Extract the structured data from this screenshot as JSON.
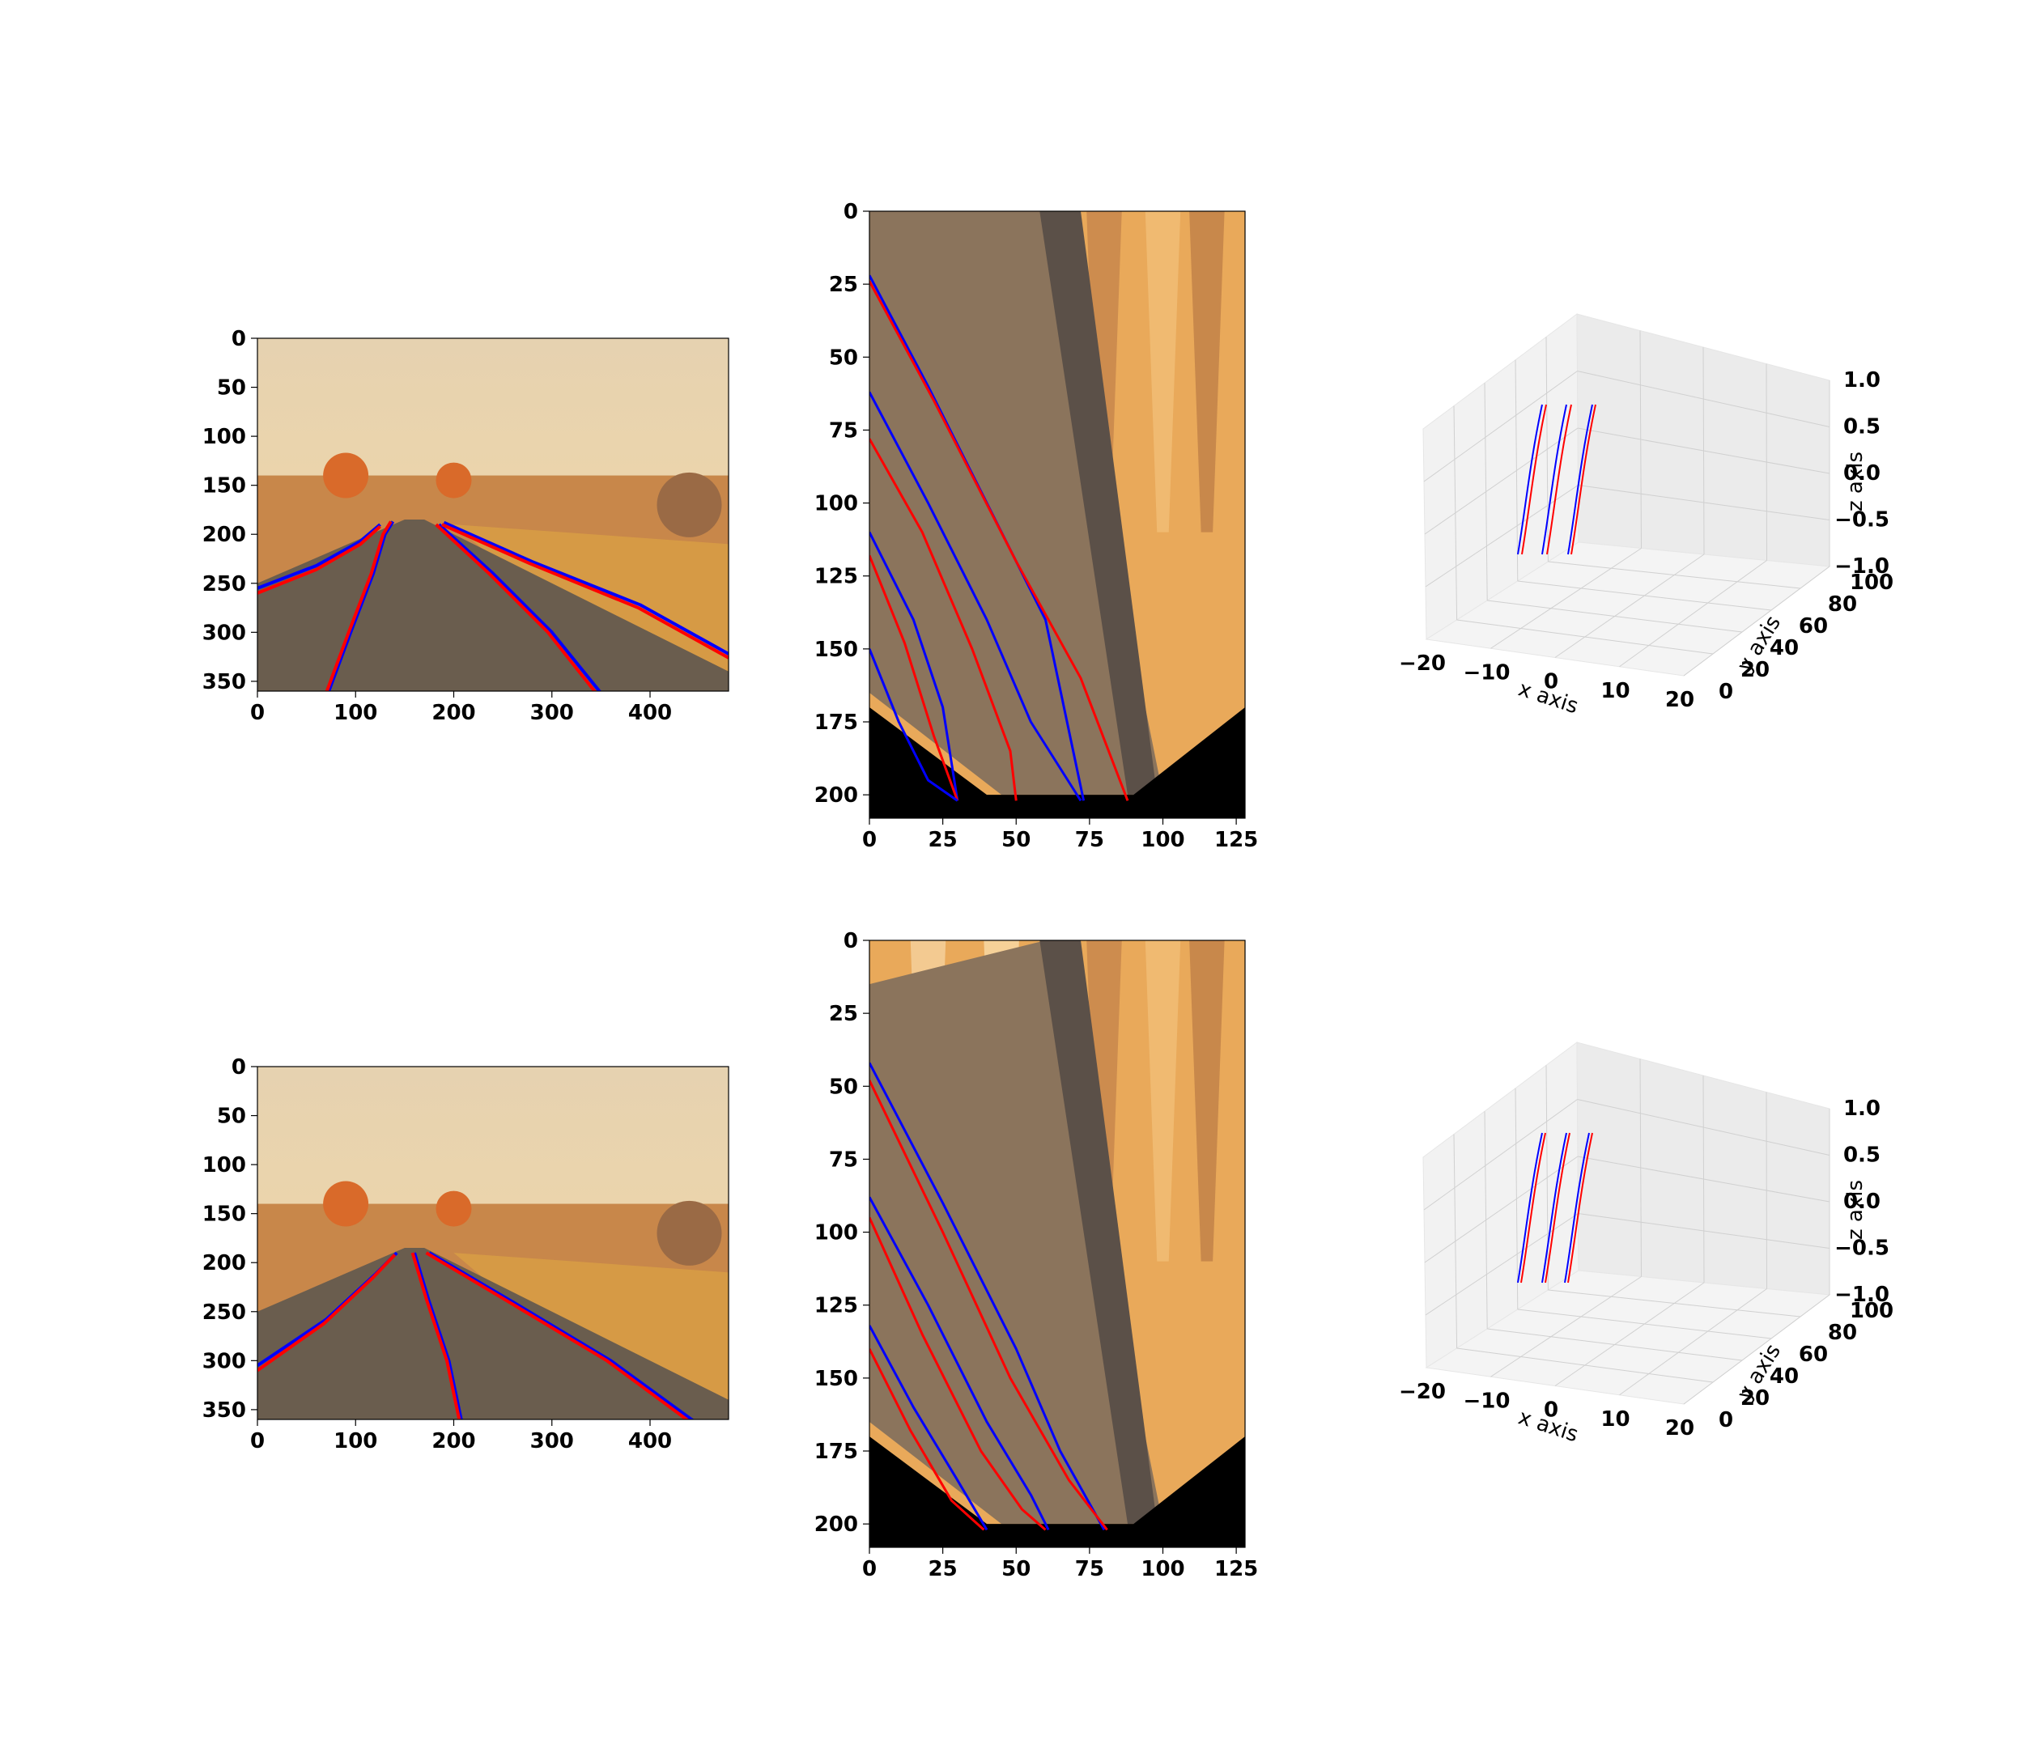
{
  "colors": {
    "pred": "#ff0000",
    "gt": "#0000ff",
    "pane": "#f2f2f2",
    "grid": "#d0d0d0",
    "sky": "#e9d1a9",
    "road": "#6a5d4e",
    "grass": "#d69a45"
  },
  "chart_data": [
    {
      "type": "image_with_lane_overlay",
      "name": "row1-camera",
      "xlim": [
        0,
        480
      ],
      "ylim": [
        360,
        0
      ],
      "xticks": [
        "0",
        "100",
        "200",
        "300",
        "400"
      ],
      "yticks": [
        "0",
        "50",
        "100",
        "150",
        "200",
        "250",
        "300",
        "350"
      ],
      "series": [
        {
          "color": "#0000ff",
          "values": [
            [
              0,
              255
            ],
            [
              60,
              232
            ],
            [
              105,
              207
            ],
            [
              125,
              190
            ]
          ]
        },
        {
          "color": "#ff0000",
          "values": [
            [
              0,
              260
            ],
            [
              60,
              236
            ],
            [
              105,
              210
            ],
            [
              125,
              192
            ]
          ]
        },
        {
          "color": "#0000ff",
          "values": [
            [
              72,
              362
            ],
            [
              95,
              300
            ],
            [
              118,
              240
            ],
            [
              130,
              200
            ],
            [
              138,
              187
            ]
          ]
        },
        {
          "color": "#ff0000",
          "values": [
            [
              70,
              362
            ],
            [
              93,
              300
            ],
            [
              116,
              240
            ],
            [
              128,
              200
            ],
            [
              136,
              187
            ]
          ]
        },
        {
          "color": "#0000ff",
          "values": [
            [
              350,
              362
            ],
            [
              300,
              300
            ],
            [
              240,
              240
            ],
            [
              185,
              190
            ]
          ]
        },
        {
          "color": "#ff0000",
          "values": [
            [
              345,
              362
            ],
            [
              296,
              300
            ],
            [
              236,
              240
            ],
            [
              182,
              190
            ]
          ]
        },
        {
          "color": "#0000ff",
          "values": [
            [
              480,
              322
            ],
            [
              390,
              272
            ],
            [
              280,
              228
            ],
            [
              190,
              188
            ]
          ]
        },
        {
          "color": "#ff0000",
          "values": [
            [
              480,
              326
            ],
            [
              388,
              275
            ],
            [
              278,
              230
            ],
            [
              188,
              190
            ]
          ]
        }
      ]
    },
    {
      "type": "image_with_lane_overlay",
      "name": "row1-birdseye",
      "xlim": [
        0,
        128
      ],
      "ylim": [
        208,
        0
      ],
      "xticks": [
        "0",
        "25",
        "50",
        "75",
        "100",
        "125"
      ],
      "yticks": [
        "0",
        "25",
        "50",
        "75",
        "100",
        "125",
        "150",
        "175",
        "200"
      ],
      "series": [
        {
          "color": "#0000ff",
          "values": [
            [
              0,
              22
            ],
            [
              20,
              60
            ],
            [
              45,
              110
            ],
            [
              60,
              140
            ],
            [
              73,
              202
            ]
          ]
        },
        {
          "color": "#ff0000",
          "values": [
            [
              0,
              24
            ],
            [
              22,
              65
            ],
            [
              50,
              120
            ],
            [
              72,
              160
            ],
            [
              88,
              202
            ]
          ]
        },
        {
          "color": "#0000ff",
          "values": [
            [
              0,
              62
            ],
            [
              20,
              100
            ],
            [
              40,
              140
            ],
            [
              55,
              175
            ],
            [
              72,
              202
            ]
          ]
        },
        {
          "color": "#ff0000",
          "values": [
            [
              0,
              78
            ],
            [
              18,
              110
            ],
            [
              35,
              150
            ],
            [
              48,
              185
            ],
            [
              50,
              202
            ]
          ]
        },
        {
          "color": "#0000ff",
          "values": [
            [
              0,
              110
            ],
            [
              15,
              140
            ],
            [
              25,
              170
            ],
            [
              30,
              202
            ]
          ]
        },
        {
          "color": "#ff0000",
          "values": [
            [
              0,
              118
            ],
            [
              12,
              148
            ],
            [
              22,
              180
            ],
            [
              30,
              202
            ]
          ]
        },
        {
          "color": "#0000ff",
          "values": [
            [
              0,
              150
            ],
            [
              10,
              175
            ],
            [
              20,
              195
            ],
            [
              30,
              202
            ]
          ]
        }
      ]
    },
    {
      "type": "3d_line",
      "name": "row1-3d",
      "xlabel": "x axis",
      "ylabel": "y axis",
      "zlabel": "z axis",
      "xticks": [
        "−20",
        "−10",
        "0",
        "10",
        "20"
      ],
      "yticks": [
        "0",
        "20",
        "40",
        "60",
        "80",
        "100"
      ],
      "zticks": [
        "−1.0",
        "−0.5",
        "0.0",
        "0.5",
        "1.0"
      ],
      "series": [
        {
          "color": "#0000ff",
          "offset": 0
        },
        {
          "color": "#ff0000",
          "offset": 5
        },
        {
          "color": "#0000ff",
          "offset": 30
        },
        {
          "color": "#ff0000",
          "offset": 36
        },
        {
          "color": "#0000ff",
          "offset": 62
        },
        {
          "color": "#ff0000",
          "offset": 66
        }
      ]
    },
    {
      "type": "image_with_lane_overlay",
      "name": "row2-camera",
      "xlim": [
        0,
        480
      ],
      "ylim": [
        360,
        0
      ],
      "xticks": [
        "0",
        "100",
        "200",
        "300",
        "400"
      ],
      "yticks": [
        "0",
        "50",
        "100",
        "150",
        "200",
        "250",
        "300",
        "350"
      ],
      "series": [
        {
          "color": "#0000ff",
          "values": [
            [
              0,
              305
            ],
            [
              70,
              258
            ],
            [
              120,
              212
            ],
            [
              142,
              190
            ]
          ]
        },
        {
          "color": "#ff0000",
          "values": [
            [
              0,
              310
            ],
            [
              68,
              262
            ],
            [
              118,
              215
            ],
            [
              140,
              192
            ]
          ]
        },
        {
          "color": "#0000ff",
          "values": [
            [
              208,
              362
            ],
            [
              195,
              300
            ],
            [
              175,
              240
            ],
            [
              160,
              190
            ]
          ]
        },
        {
          "color": "#ff0000",
          "values": [
            [
              206,
              362
            ],
            [
              193,
              300
            ],
            [
              173,
              240
            ],
            [
              158,
              190
            ]
          ]
        },
        {
          "color": "#0000ff",
          "values": [
            [
              445,
              362
            ],
            [
              360,
              300
            ],
            [
              260,
              240
            ],
            [
              175,
              190
            ]
          ]
        },
        {
          "color": "#ff0000",
          "values": [
            [
              440,
              362
            ],
            [
              356,
              300
            ],
            [
              256,
              240
            ],
            [
              172,
              190
            ]
          ]
        }
      ]
    },
    {
      "type": "image_with_lane_overlay",
      "name": "row2-birdseye",
      "xlim": [
        0,
        128
      ],
      "ylim": [
        208,
        0
      ],
      "xticks": [
        "0",
        "25",
        "50",
        "75",
        "100",
        "125"
      ],
      "yticks": [
        "0",
        "25",
        "50",
        "75",
        "100",
        "125",
        "150",
        "175",
        "200"
      ],
      "series": [
        {
          "color": "#0000ff",
          "values": [
            [
              0,
              42
            ],
            [
              25,
              90
            ],
            [
              50,
              140
            ],
            [
              65,
              175
            ],
            [
              80,
              202
            ]
          ]
        },
        {
          "color": "#ff0000",
          "values": [
            [
              0,
              48
            ],
            [
              25,
              100
            ],
            [
              48,
              150
            ],
            [
              68,
              185
            ],
            [
              81,
              202
            ]
          ]
        },
        {
          "color": "#0000ff",
          "values": [
            [
              0,
              88
            ],
            [
              20,
              125
            ],
            [
              40,
              165
            ],
            [
              55,
              190
            ],
            [
              61,
              202
            ]
          ]
        },
        {
          "color": "#ff0000",
          "values": [
            [
              0,
              95
            ],
            [
              18,
              135
            ],
            [
              38,
              175
            ],
            [
              52,
              195
            ],
            [
              60,
              202
            ]
          ]
        },
        {
          "color": "#0000ff",
          "values": [
            [
              0,
              132
            ],
            [
              15,
              160
            ],
            [
              30,
              185
            ],
            [
              40,
              202
            ]
          ]
        },
        {
          "color": "#ff0000",
          "values": [
            [
              0,
              140
            ],
            [
              14,
              168
            ],
            [
              28,
              192
            ],
            [
              39,
              202
            ]
          ]
        }
      ]
    },
    {
      "type": "3d_line",
      "name": "row2-3d",
      "xlabel": "x axis",
      "ylabel": "y axis",
      "zlabel": "z axis",
      "xticks": [
        "−20",
        "−10",
        "0",
        "10",
        "20"
      ],
      "yticks": [
        "0",
        "20",
        "40",
        "60",
        "80",
        "100"
      ],
      "zticks": [
        "−1.0",
        "−0.5",
        "0.0",
        "0.5",
        "1.0"
      ],
      "series": [
        {
          "color": "#0000ff",
          "offset": 0
        },
        {
          "color": "#ff0000",
          "offset": 4
        },
        {
          "color": "#0000ff",
          "offset": 30
        },
        {
          "color": "#ff0000",
          "offset": 34
        },
        {
          "color": "#0000ff",
          "offset": 58
        },
        {
          "color": "#ff0000",
          "offset": 62
        }
      ]
    }
  ]
}
